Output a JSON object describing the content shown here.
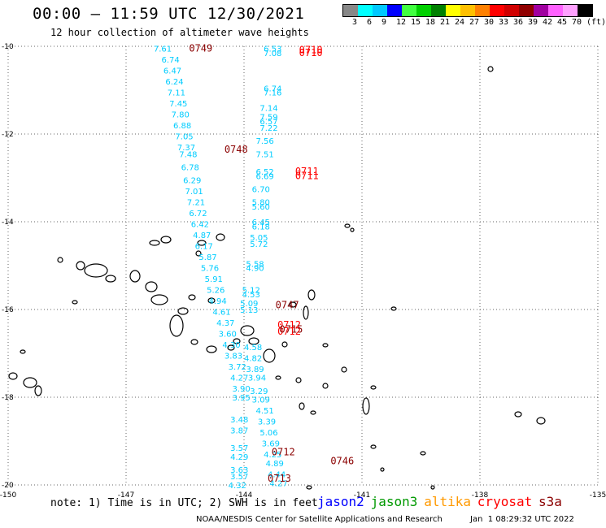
{
  "header": {
    "title": "00:00 – 11:59 UTC 12/30/2021",
    "subtitle": "12 hour collection of altimeter wave heights"
  },
  "scale": {
    "colors": [
      "#888888",
      "#00ffff",
      "#00c8ff",
      "#0000ff",
      "#40ff40",
      "#00d000",
      "#008000",
      "#ffff00",
      "#ffc000",
      "#ff8000",
      "#ff0000",
      "#d00000",
      "#900000",
      "#a000a0",
      "#ff60ff",
      "#ffa0ff",
      "#000000"
    ],
    "labels": [
      "3",
      "6",
      "9",
      "12",
      "15",
      "18",
      "21",
      "24",
      "27",
      "30",
      "33",
      "36",
      "39",
      "42",
      "45",
      "70",
      "(ft)"
    ]
  },
  "chart_data": {
    "type": "scatter",
    "xlim": [
      -150,
      -135
    ],
    "ylim": [
      -20,
      -10
    ],
    "x_ticks": [
      "-150",
      "-147",
      "-144",
      "-141",
      "-138",
      "-135"
    ],
    "y_ticks": [
      "-10",
      "-12",
      "-14",
      "-16",
      "-18",
      "-20"
    ],
    "grid": true,
    "series": [
      {
        "name": "jason3 track A",
        "color": "#00ccff",
        "points": [
          {
            "lon": -146.3,
            "lat": -10.05,
            "label": "7.61"
          },
          {
            "lon": -146.1,
            "lat": -10.3,
            "label": "6.74"
          },
          {
            "lon": -146.05,
            "lat": -10.55,
            "label": "6.47"
          },
          {
            "lon": -146.0,
            "lat": -10.8,
            "label": "6.24"
          },
          {
            "lon": -145.95,
            "lat": -11.05,
            "label": "7.11"
          },
          {
            "lon": -145.9,
            "lat": -11.3,
            "label": "7.45"
          },
          {
            "lon": -145.85,
            "lat": -11.55,
            "label": "7.80"
          },
          {
            "lon": -145.8,
            "lat": -11.8,
            "label": "6.88"
          },
          {
            "lon": -145.75,
            "lat": -12.05,
            "label": "7.05"
          },
          {
            "lon": -145.7,
            "lat": -12.3,
            "label": "7.37"
          },
          {
            "lon": -145.65,
            "lat": -12.45,
            "label": "7.48"
          },
          {
            "lon": -145.6,
            "lat": -12.75,
            "label": "6.78"
          },
          {
            "lon": -145.55,
            "lat": -13.05,
            "label": "6.29"
          },
          {
            "lon": -145.5,
            "lat": -13.3,
            "label": "7.01"
          },
          {
            "lon": -145.45,
            "lat": -13.55,
            "label": "7.21"
          },
          {
            "lon": -145.4,
            "lat": -13.8,
            "label": "6.72"
          },
          {
            "lon": -145.35,
            "lat": -14.05,
            "label": "6.42"
          },
          {
            "lon": -145.3,
            "lat": -14.3,
            "label": "4.87"
          },
          {
            "lon": -145.25,
            "lat": -14.55,
            "label": "6.17"
          },
          {
            "lon": -145.15,
            "lat": -14.8,
            "label": "5.87"
          },
          {
            "lon": -145.1,
            "lat": -15.05,
            "label": "5.76"
          },
          {
            "lon": -145.0,
            "lat": -15.3,
            "label": "5.91"
          },
          {
            "lon": -144.95,
            "lat": -15.55,
            "label": "5.26"
          },
          {
            "lon": -144.9,
            "lat": -15.8,
            "label": "4.94"
          },
          {
            "lon": -144.8,
            "lat": -16.05,
            "label": "4.61"
          },
          {
            "lon": -144.7,
            "lat": -16.3,
            "label": "4.37"
          },
          {
            "lon": -144.65,
            "lat": -16.55,
            "label": "3.60"
          },
          {
            "lon": -144.55,
            "lat": -16.8,
            "label": "4.30"
          },
          {
            "lon": -144.5,
            "lat": -17.05,
            "label": "3.83"
          },
          {
            "lon": -144.4,
            "lat": -17.3,
            "label": "3.72"
          },
          {
            "lon": -144.35,
            "lat": -17.55,
            "label": "4.27"
          },
          {
            "lon": -144.3,
            "lat": -17.8,
            "label": "3.90"
          },
          {
            "lon": -144.3,
            "lat": -18.0,
            "label": "3.95"
          },
          {
            "lon": -144.35,
            "lat": -18.5,
            "label": "3.48"
          },
          {
            "lon": -144.35,
            "lat": -18.75,
            "label": "3.87"
          },
          {
            "lon": -144.35,
            "lat": -19.15,
            "label": "3.57"
          },
          {
            "lon": -144.35,
            "lat": -19.35,
            "label": "4.29"
          },
          {
            "lon": -144.35,
            "lat": -19.65,
            "label": "3.63"
          },
          {
            "lon": -144.35,
            "lat": -19.8,
            "label": "3.57"
          },
          {
            "lon": -144.4,
            "lat": -20.0,
            "label": "4.32"
          }
        ]
      },
      {
        "name": "jason3 track B",
        "color": "#00ccff",
        "points": [
          {
            "lon": -143.5,
            "lat": -10.05,
            "label": "6.53"
          },
          {
            "lon": -143.5,
            "lat": -10.15,
            "label": "7.08"
          },
          {
            "lon": -143.5,
            "lat": -10.95,
            "label": "6.74"
          },
          {
            "lon": -143.5,
            "lat": -11.05,
            "label": "7.16"
          },
          {
            "lon": -143.6,
            "lat": -11.4,
            "label": "7.14"
          },
          {
            "lon": -143.6,
            "lat": -11.6,
            "label": "7.59"
          },
          {
            "lon": -143.6,
            "lat": -11.7,
            "label": "6.57"
          },
          {
            "lon": -143.6,
            "lat": -11.85,
            "label": "7.22"
          },
          {
            "lon": -143.7,
            "lat": -12.15,
            "label": "7.56"
          },
          {
            "lon": -143.7,
            "lat": -12.45,
            "label": "7.51"
          },
          {
            "lon": -143.7,
            "lat": -12.85,
            "label": "6.52"
          },
          {
            "lon": -143.7,
            "lat": -12.95,
            "label": "6.69"
          },
          {
            "lon": -143.8,
            "lat": -13.25,
            "label": "6.70"
          },
          {
            "lon": -143.8,
            "lat": -13.55,
            "label": "5.80"
          },
          {
            "lon": -143.8,
            "lat": -13.65,
            "label": "5.60"
          },
          {
            "lon": -143.8,
            "lat": -14.0,
            "label": "6.45"
          },
          {
            "lon": -143.8,
            "lat": -14.1,
            "label": "6.18"
          },
          {
            "lon": -143.85,
            "lat": -14.35,
            "label": "5.05"
          },
          {
            "lon": -143.85,
            "lat": -14.5,
            "label": "5.72"
          },
          {
            "lon": -143.95,
            "lat": -14.95,
            "label": "5.58"
          },
          {
            "lon": -143.95,
            "lat": -15.05,
            "label": "4.90"
          },
          {
            "lon": -144.05,
            "lat": -15.55,
            "label": "5.12"
          },
          {
            "lon": -144.05,
            "lat": -15.65,
            "label": "4.53"
          },
          {
            "lon": -144.1,
            "lat": -15.85,
            "label": "5.09"
          },
          {
            "lon": -144.1,
            "lat": -16.0,
            "label": "5.13"
          },
          {
            "lon": -144.0,
            "lat": -16.85,
            "label": "4.58"
          },
          {
            "lon": -144.0,
            "lat": -17.1,
            "label": "4.82"
          },
          {
            "lon": -143.95,
            "lat": -17.35,
            "label": "3.89"
          },
          {
            "lon": -143.9,
            "lat": -17.55,
            "label": "3.94"
          },
          {
            "lon": -143.85,
            "lat": -17.85,
            "label": "3.29"
          },
          {
            "lon": -143.8,
            "lat": -18.05,
            "label": "3.09"
          },
          {
            "lon": -143.7,
            "lat": -18.3,
            "label": "4.51"
          },
          {
            "lon": -143.65,
            "lat": -18.55,
            "label": "3.39"
          },
          {
            "lon": -143.6,
            "lat": -18.8,
            "label": "5.06"
          },
          {
            "lon": -143.55,
            "lat": -19.05,
            "label": "3.69"
          },
          {
            "lon": -143.5,
            "lat": -19.3,
            "label": "4.25"
          },
          {
            "lon": -143.45,
            "lat": -19.5,
            "label": "4.89"
          },
          {
            "lon": -143.4,
            "lat": -19.75,
            "label": "4.44"
          },
          {
            "lon": -143.35,
            "lat": -19.95,
            "label": "4.27"
          }
        ]
      },
      {
        "name": "cryosat time tags",
        "color": "#ff0000",
        "points": [
          {
            "lon": -142.6,
            "lat": -10.08,
            "label": "0710"
          },
          {
            "lon": -142.6,
            "lat": -10.15,
            "label": "0710"
          },
          {
            "lon": -142.7,
            "lat": -12.85,
            "label": "0711"
          },
          {
            "lon": -142.7,
            "lat": -12.95,
            "label": "0711"
          },
          {
            "lon": -143.15,
            "lat": -16.35,
            "label": "0712"
          },
          {
            "lon": -143.15,
            "lat": -16.5,
            "label": "0712"
          }
        ]
      },
      {
        "name": "s3a time tags",
        "color": "#8b0000",
        "points": [
          {
            "lon": -145.4,
            "lat": -10.05,
            "label": "0749"
          },
          {
            "lon": -144.5,
            "lat": -12.35,
            "label": "0748"
          },
          {
            "lon": -143.2,
            "lat": -15.9,
            "label": "0747"
          },
          {
            "lon": -143.1,
            "lat": -16.45,
            "label": "0715"
          },
          {
            "lon": -143.3,
            "lat": -19.25,
            "label": "0712"
          },
          {
            "lon": -143.4,
            "lat": -19.85,
            "label": "0713"
          },
          {
            "lon": -141.8,
            "lat": -19.45,
            "label": "0746"
          }
        ]
      }
    ]
  },
  "footer": {
    "note": "note: 1) Time is in UTC; 2) SWH is in feet",
    "legend": [
      {
        "label": "jason2",
        "color": "#0000ff"
      },
      {
        "label": "jason3",
        "color": "#009900"
      },
      {
        "label": "altika",
        "color": "#ff9900"
      },
      {
        "label": "cryosat",
        "color": "#ff0000"
      },
      {
        "label": "s3a",
        "color": "#8b0000"
      }
    ],
    "credit": "NOAA/NESDIS Center for Satellite Applications and Research",
    "timestamp": "Jan  1 08:29:32 UTC 2022"
  }
}
